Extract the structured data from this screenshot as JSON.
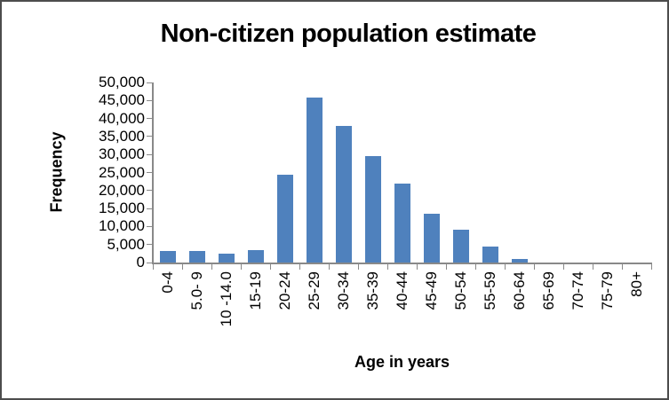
{
  "chart_data": {
    "type": "bar",
    "title": "Non-citizen population estimate",
    "xlabel": "Age in years",
    "ylabel": "Frequency",
    "categories": [
      "0-4",
      "5.0- 9",
      "10 -14.0",
      "15-19",
      "20-24",
      "25-29",
      "30-34",
      "35-39",
      "40-44",
      "45-49",
      "50-54",
      "55-59",
      "60-64",
      "65-69",
      "70-74",
      "75-79",
      "80+"
    ],
    "values": [
      3200,
      3100,
      2500,
      3400,
      24300,
      45800,
      37900,
      29600,
      21900,
      13600,
      9200,
      4500,
      1100,
      0,
      0,
      0,
      0
    ],
    "ylim": [
      0,
      50000
    ],
    "ytick_interval": 5000,
    "ytick_labels": [
      "0",
      "5,000",
      "10,000",
      "15,000",
      "20,000",
      "25,000",
      "30,000",
      "35,000",
      "40,000",
      "45,000",
      "50,000"
    ],
    "grid": false,
    "legend": "none",
    "bar_color": "#4F81BD",
    "axis_color": "#898989",
    "text_color": "#000000",
    "frame_color": "#4d4d4d"
  }
}
